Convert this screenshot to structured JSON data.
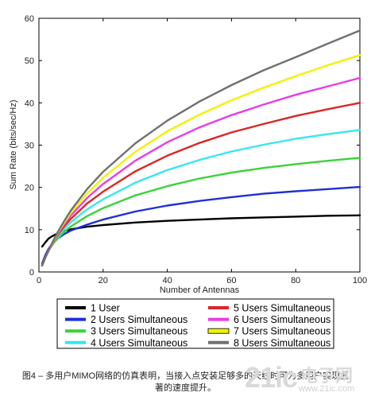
{
  "chart_data": {
    "type": "line",
    "title": "",
    "xlabel": "Number of Antennas",
    "ylabel": "Sum Rate (bits/sec/Hz)",
    "xlim": [
      0,
      100
    ],
    "ylim": [
      0,
      60
    ],
    "xticks": [
      0,
      20,
      40,
      60,
      80,
      100
    ],
    "yticks": [
      0,
      10,
      20,
      30,
      40,
      50,
      60
    ],
    "grid": false,
    "legend_position": "bottom",
    "x": [
      1,
      2,
      3,
      4,
      5,
      6,
      8,
      10,
      15,
      20,
      30,
      40,
      50,
      60,
      70,
      80,
      90,
      100
    ],
    "series": [
      {
        "name": "1 User",
        "color": "#000000",
        "values": [
          6.0,
          7.0,
          7.9,
          8.4,
          8.8,
          9.2,
          9.7,
          10.1,
          10.7,
          11.1,
          11.7,
          12.1,
          12.4,
          12.7,
          12.9,
          13.1,
          13.3,
          13.4
        ]
      },
      {
        "name": "2 Users Simultaneous",
        "color": "#1f2fd6",
        "values": [
          2.0,
          4.0,
          5.5,
          6.5,
          7.3,
          8.0,
          9.0,
          9.8,
          11.2,
          12.4,
          14.3,
          15.7,
          16.8,
          17.7,
          18.5,
          19.1,
          19.6,
          20.1
        ]
      },
      {
        "name": "3 Users Simultaneous",
        "color": "#3ad23a",
        "values": [
          1.5,
          3.5,
          5.0,
          6.2,
          7.2,
          8.0,
          9.6,
          10.8,
          13.2,
          15.1,
          18.1,
          20.3,
          22.1,
          23.5,
          24.6,
          25.5,
          26.3,
          27.0
        ]
      },
      {
        "name": "4 Users Simultaneous",
        "color": "#35e8ec",
        "values": [
          1.5,
          3.4,
          5.0,
          6.3,
          7.5,
          8.5,
          10.3,
          11.8,
          14.8,
          17.2,
          21.1,
          24.1,
          26.5,
          28.5,
          30.1,
          31.5,
          32.6,
          33.6
        ]
      },
      {
        "name": "5 Users Simultaneous",
        "color": "#dc2626",
        "values": [
          1.5,
          3.4,
          5.0,
          6.4,
          7.7,
          8.9,
          10.9,
          12.6,
          16.2,
          19.0,
          23.8,
          27.5,
          30.5,
          33.0,
          35.0,
          36.9,
          38.5,
          40.0
        ]
      },
      {
        "name": "6 Users Simultaneous",
        "color": "#e83ce8",
        "values": [
          1.5,
          3.4,
          5.0,
          6.5,
          7.9,
          9.2,
          11.4,
          13.4,
          17.5,
          20.8,
          26.3,
          30.7,
          34.2,
          37.1,
          39.6,
          41.9,
          43.9,
          45.9
        ]
      },
      {
        "name": "7 Users Simultaneous",
        "color": "#f2f200",
        "values": [
          1.5,
          3.4,
          5.1,
          6.6,
          8.0,
          9.4,
          11.8,
          14.0,
          18.6,
          22.3,
          28.4,
          33.3,
          37.2,
          40.6,
          43.6,
          46.3,
          48.9,
          51.3
        ]
      },
      {
        "name": "8 Users Simultaneous",
        "color": "#707070",
        "values": [
          1.5,
          3.4,
          5.1,
          6.7,
          8.2,
          9.6,
          12.2,
          14.6,
          19.6,
          23.7,
          30.4,
          35.8,
          40.3,
          44.2,
          47.7,
          50.8,
          54.0,
          57.1
        ]
      }
    ]
  },
  "caption": {
    "line1": "图4 – 多用户MIMO网络的仿真表明，当接入点安装足够多的天线时可为多用户实现显",
    "line2": "著的速度提升。"
  },
  "watermark": {
    "number": "21ic",
    "chinese": "电子网",
    "url": "www.21ic.com"
  }
}
